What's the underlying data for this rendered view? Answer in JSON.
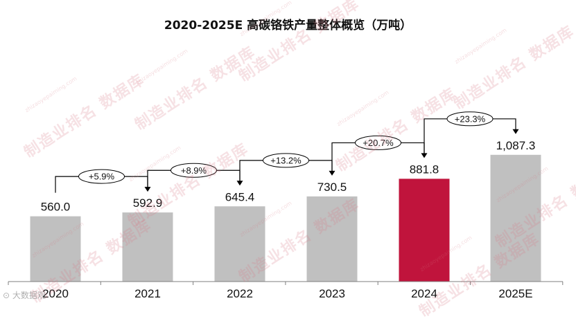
{
  "chart_data": {
    "type": "bar",
    "title": "2020-2025E 高碳铬铁产量整体概览（万吨）",
    "categories": [
      "2020",
      "2021",
      "2022",
      "2023",
      "2024",
      "2025E"
    ],
    "values": [
      560.0,
      592.9,
      645.4,
      730.5,
      881.8,
      1087.3
    ],
    "value_labels": [
      "560.0",
      "592.9",
      "645.4",
      "730.5",
      "881.8",
      "1,087.3"
    ],
    "growth_labels": [
      "+5.9%",
      "+8.9%",
      "+13.2%",
      "+20.7%",
      "+23.3%"
    ],
    "highlight_index": 4,
    "ylim": [
      0,
      1200
    ],
    "grid": false,
    "legend": "none"
  },
  "colors": {
    "bar": "#c0c0c0",
    "highlight": "#c0143c",
    "axis": "#7f7f7f",
    "text": "#111111"
  },
  "watermark": {
    "text": "制造业排名 数据库",
    "sub": "zhizaoyepaiming.com"
  },
  "source_mark": "⊙ 大数据观"
}
